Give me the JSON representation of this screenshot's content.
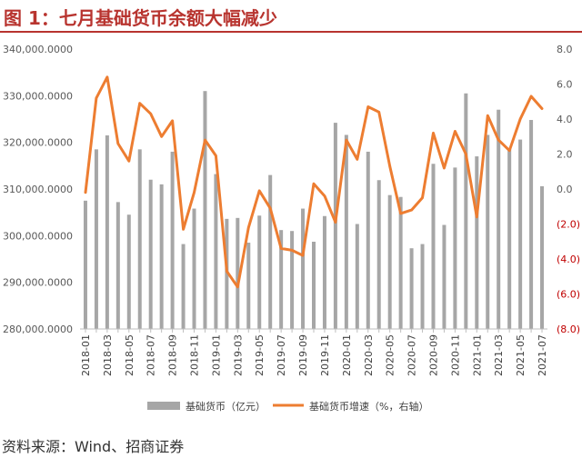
{
  "figure": {
    "title": "图 1：七月基础货币余额大幅减少",
    "source": "资料来源：Wind、招商证券"
  },
  "chart_data": {
    "type": "bar",
    "x": [
      "2018-01",
      "2018-02",
      "2018-03",
      "2018-04",
      "2018-05",
      "2018-06",
      "2018-07",
      "2018-08",
      "2018-09",
      "2018-10",
      "2018-11",
      "2018-12",
      "2019-01",
      "2019-02",
      "2019-03",
      "2019-04",
      "2019-05",
      "2019-06",
      "2019-07",
      "2019-08",
      "2019-09",
      "2019-10",
      "2019-11",
      "2019-12",
      "2020-01",
      "2020-02",
      "2020-03",
      "2020-04",
      "2020-05",
      "2020-06",
      "2020-07",
      "2020-08",
      "2020-09",
      "2020-10",
      "2020-11",
      "2020-12",
      "2021-01",
      "2021-02",
      "2021-03",
      "2021-04",
      "2021-05",
      "2021-06",
      "2021-07"
    ],
    "x_tick_labels": [
      "2018-01",
      "2018-03",
      "2018-05",
      "2018-07",
      "2018-09",
      "2018-11",
      "2019-01",
      "2019-03",
      "2019-05",
      "2019-07",
      "2019-09",
      "2019-11",
      "2020-01",
      "2020-03",
      "2020-05",
      "2020-07",
      "2020-09",
      "2020-11",
      "2021-01",
      "2021-03",
      "2021-05",
      "2021-07"
    ],
    "series": [
      {
        "name": "基础货币（亿元）",
        "type": "bar",
        "axis": "left",
        "color": "#a6a6a6",
        "values": [
          307500,
          318500,
          321500,
          307200,
          304500,
          318500,
          312000,
          311000,
          318000,
          298200,
          305800,
          331000,
          313200,
          303600,
          303800,
          298500,
          304300,
          313000,
          301200,
          301000,
          305800,
          298700,
          304200,
          324200,
          321600,
          302500,
          318000,
          311900,
          308700,
          308300,
          297300,
          298200,
          315400,
          302300,
          314600,
          330500,
          317000,
          321600,
          327000,
          318600,
          320600,
          324800,
          310600
        ]
      },
      {
        "name": "基础货币增速（%，右轴）",
        "type": "line",
        "axis": "right",
        "color": "#ed7d31",
        "values": [
          -0.2,
          5.2,
          6.4,
          2.6,
          1.6,
          4.9,
          4.3,
          3.0,
          3.9,
          -2.3,
          -0.2,
          2.8,
          1.9,
          -4.7,
          -5.6,
          -2.2,
          -0.1,
          -1.1,
          -3.4,
          -3.5,
          -3.8,
          0.3,
          -0.4,
          -1.9,
          2.8,
          1.7,
          4.7,
          4.4,
          1.3,
          -1.4,
          -1.2,
          -0.5,
          3.2,
          1.2,
          3.3,
          2.0,
          -1.6,
          4.2,
          2.8,
          2.2,
          4.0,
          5.3,
          4.6
        ]
      }
    ],
    "y_left": {
      "lim": [
        280000,
        340000
      ],
      "ticks": [
        280000,
        290000,
        300000,
        310000,
        320000,
        330000,
        340000
      ],
      "tick_labels": [
        "280,000.0000",
        "290,000.0000",
        "300,000.0000",
        "310,000.0000",
        "320,000.0000",
        "330,000.0000",
        "340,000.0000"
      ]
    },
    "y_right": {
      "lim": [
        -8,
        8
      ],
      "ticks": [
        -8,
        -6,
        -4,
        -2,
        0,
        2,
        4,
        6,
        8
      ],
      "tick_labels": [
        "(8.0)",
        "(6.0)",
        "(4.0)",
        "(2.0)",
        "0.0",
        "2.0",
        "4.0",
        "6.0",
        "8.0"
      ],
      "negative_color": "#c00000"
    },
    "legend": {
      "position": "bottom"
    },
    "grid": false
  }
}
